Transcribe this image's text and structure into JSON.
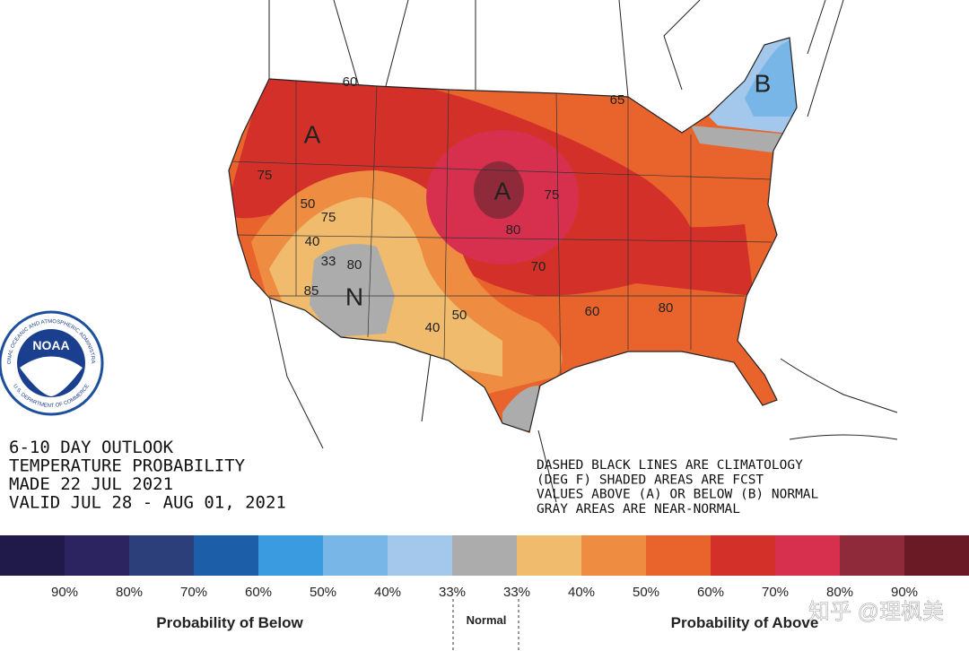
{
  "logo": {
    "name": "NOAA",
    "ring_top": "NATIONAL OCEANIC AND ATMOSPHERIC ADMINISTRATION",
    "ring_bottom": "U.S. DEPARTMENT OF COMMERCE"
  },
  "header": {
    "lines": [
      "6-10 DAY OUTLOOK",
      "TEMPERATURE PROBABILITY",
      "MADE  22 JUL 2021",
      "VALID  JUL 28 - AUG 01, 2021"
    ]
  },
  "notes": {
    "lines": [
      "DASHED BLACK LINES ARE CLIMATOLOGY",
      "(DEG F) SHADED AREAS ARE FCST",
      "VALUES ABOVE (A) OR BELOW (B) NORMAL",
      "GRAY AREAS ARE NEAR-NORMAL"
    ]
  },
  "map_labels": [
    "60",
    "65",
    "B",
    "A",
    "75",
    "A",
    "75",
    "50",
    "75",
    "40",
    "33",
    "80",
    "85",
    "N",
    "80",
    "70",
    "50",
    "40",
    "60",
    "80"
  ],
  "legend": {
    "colors": [
      "#1f1a4a",
      "#2b2460",
      "#2d3f7a",
      "#1d5ea8",
      "#3a9be0",
      "#78b6e8",
      "#a4c8ec",
      "#acacac",
      "#f0bb6c",
      "#ee8d42",
      "#e8642c",
      "#d3302a",
      "#d7304f",
      "#8e2a3a",
      "#6a1a24"
    ],
    "labels": [
      "90%",
      "80%",
      "70%",
      "60%",
      "50%",
      "40%",
      "33%",
      "33%",
      "40%",
      "50%",
      "60%",
      "70%",
      "80%",
      "90%"
    ],
    "below": "Probability of Below",
    "normal": "Normal",
    "above": "Probability of Above"
  },
  "watermark": "知乎 @理枫美"
}
